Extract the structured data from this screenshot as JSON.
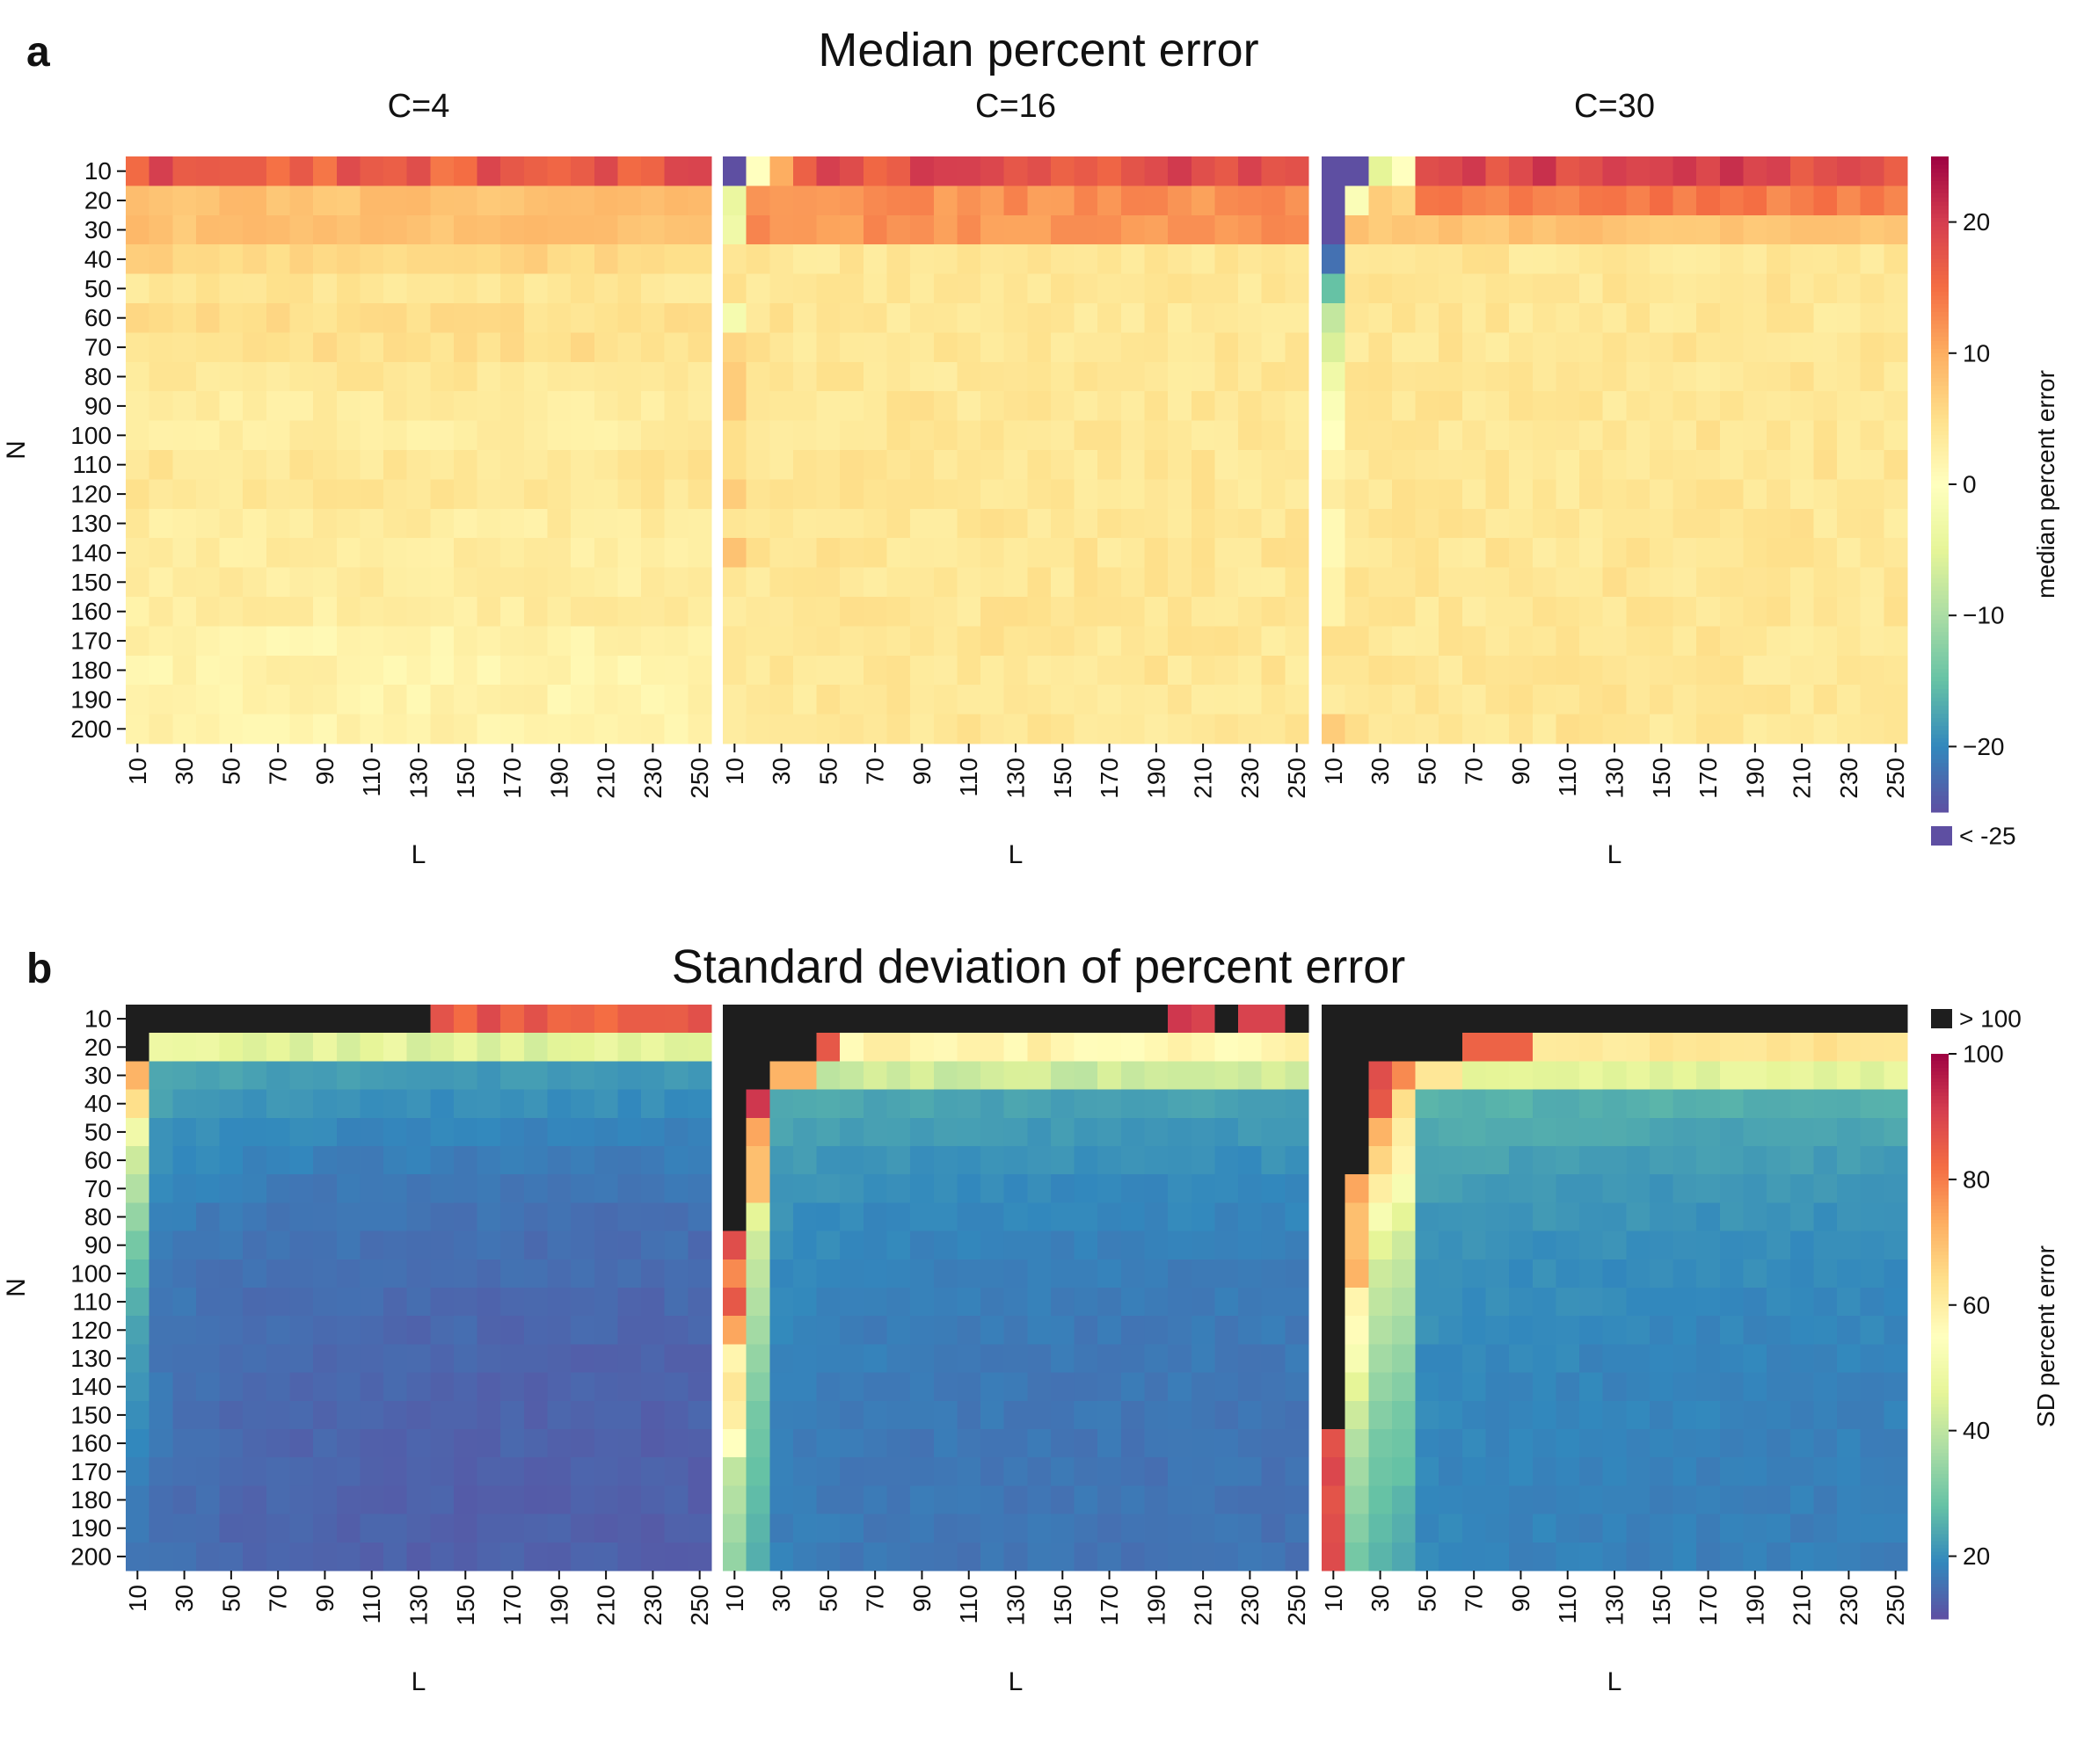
{
  "chart_data": [
    {
      "type": "heatmap",
      "panel_letter": "a",
      "title": "Median percent error",
      "facets": [
        "C=4",
        "C=16",
        "C=30"
      ],
      "xlabel": "L",
      "ylabel": "N",
      "x": [
        10,
        20,
        30,
        40,
        50,
        60,
        70,
        80,
        90,
        100,
        110,
        120,
        130,
        140,
        150,
        160,
        170,
        180,
        190,
        200,
        210,
        220,
        230,
        240,
        250
      ],
      "x_tick_labels": [
        "10",
        "30",
        "50",
        "70",
        "90",
        "110",
        "130",
        "150",
        "170",
        "190",
        "210",
        "230",
        "250"
      ],
      "y": [
        10,
        20,
        30,
        40,
        50,
        60,
        70,
        80,
        90,
        100,
        110,
        120,
        130,
        140,
        150,
        160,
        170,
        180,
        190,
        200
      ],
      "y_tick_labels": [
        "10",
        "20",
        "30",
        "40",
        "50",
        "60",
        "70",
        "80",
        "90",
        "100",
        "110",
        "120",
        "130",
        "140",
        "150",
        "160",
        "170",
        "180",
        "190",
        "200"
      ],
      "colormap": "Spectral_r",
      "colorbar": {
        "label": "median percent error",
        "range": [
          -25,
          25
        ],
        "ticks": [
          20,
          10,
          0,
          -10,
          -20
        ],
        "tick_labels": [
          "20",
          "10",
          "0",
          "−10",
          "−20"
        ],
        "extra": {
          "label": "< -25",
          "color": "#5e4fa2"
        }
      }
    },
    {
      "type": "heatmap",
      "panel_letter": "b",
      "title": "Standard deviation of percent error",
      "facets": [
        "",
        "",
        ""
      ],
      "xlabel": "L",
      "ylabel": "N",
      "x": [
        10,
        20,
        30,
        40,
        50,
        60,
        70,
        80,
        90,
        100,
        110,
        120,
        130,
        140,
        150,
        160,
        170,
        180,
        190,
        200,
        210,
        220,
        230,
        240,
        250
      ],
      "x_tick_labels": [
        "10",
        "30",
        "50",
        "70",
        "90",
        "110",
        "130",
        "150",
        "170",
        "190",
        "210",
        "230",
        "250"
      ],
      "y": [
        10,
        20,
        30,
        40,
        50,
        60,
        70,
        80,
        90,
        100,
        110,
        120,
        130,
        140,
        150,
        160,
        170,
        180,
        190,
        200
      ],
      "y_tick_labels": [
        "10",
        "20",
        "30",
        "40",
        "50",
        "60",
        "70",
        "80",
        "90",
        "100",
        "110",
        "120",
        "130",
        "140",
        "150",
        "160",
        "170",
        "180",
        "190",
        "200"
      ],
      "colormap": "Spectral_r",
      "colorbar": {
        "label": "SD percent error",
        "range": [
          10,
          100
        ],
        "ticks": [
          100,
          80,
          60,
          40,
          20
        ],
        "tick_labels": [
          "100",
          "80",
          "60",
          "40",
          "20"
        ],
        "extra": {
          "label": "> 100",
          "color": "#1e1e1e"
        }
      }
    }
  ]
}
